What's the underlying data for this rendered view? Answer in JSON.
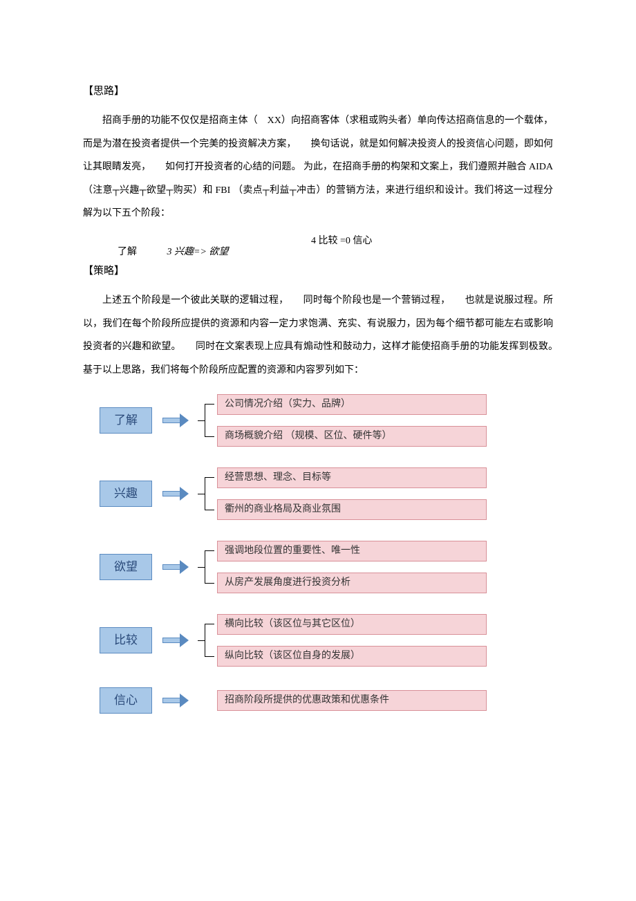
{
  "colors": {
    "stage_box_fill": "#a8c8e8",
    "stage_box_border": "#5a8ac0",
    "stage_box_text": "#2a4a7a",
    "arrow_fill": "#a8c8e8",
    "arrow_border": "#5a8ac0",
    "content_box_fill": "#f6d4d8",
    "content_box_border": "#d89098",
    "content_box_text": "#333333"
  },
  "heading1": "【思路】",
  "para1": "招商手册的功能不仅仅是招商主体（　XX）向招商客体（求租或购头者）单向传达招商信息的一个载体，而是为潜在投资者提供一个完美的投资解决方案，　　换句话说，就是如何解决投资人的投资信心问题，即如何让其眼睛发亮，　　如何打开投资者的心结的问题。 为此，在招商手册的构架和文案上，我们遵照并融合 AIDA （注意┬兴趣┬欲望┬购买）和 FBI （卖点┬利益┬冲击）的营销方法，来进行组织和设计。我们将这一过程分解为以下五个阶段：",
  "stage_line_top": "4 比较  =0 信心",
  "stage_line_left": "了解",
  "stage_line_mid": "3 兴趣=> 欲望",
  "heading2": "【策略】",
  "para2": "上述五个阶段是一个彼此关联的逻辑过程，　　同时每个阶段也是一个营销过程，　　也就是说服过程。所以，我们在每个阶段所应提供的资源和内容一定力求饱满、充实、有说服力，因为每个细节都可能左右或影响投资者的兴趣和欲望。　　同时在文案表现上应具有煽动性和鼓动力，这样才能使招商手册的功能发挥到极致。　　基于以上思路，我们将每个阶段所应配置的资源和内容罗列如下：",
  "diagram": {
    "stages": [
      {
        "label": "了解",
        "items": [
          "公司情况介绍（实力、品牌）",
          "商场概貌介绍 （规模、区位、硬件等）"
        ]
      },
      {
        "label": "兴趣",
        "items": [
          "经营思想、理念、目标等",
          "衢州的商业格局及商业氛围"
        ]
      },
      {
        "label": "欲望",
        "items": [
          "强调地段位置的重要性、唯一性",
          "从房产发展角度进行投资分析"
        ]
      },
      {
        "label": "比较",
        "items": [
          "横向比较（该区位与其它区位）",
          "纵向比较（该区位自身的发展）"
        ]
      },
      {
        "label": "信心",
        "items": [
          "招商阶段所提供的优惠政策和优惠条件"
        ]
      }
    ]
  }
}
